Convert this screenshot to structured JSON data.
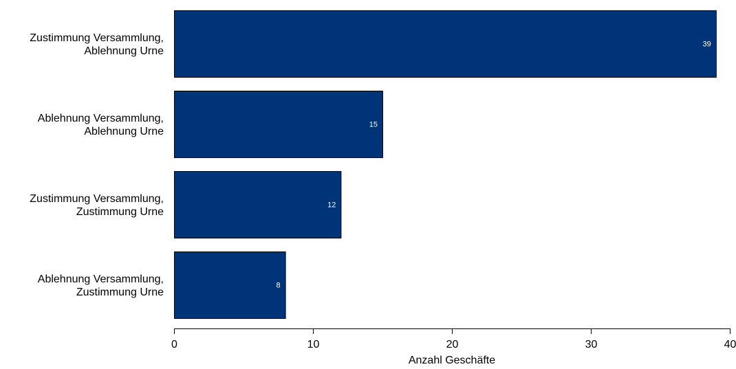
{
  "chart_data": {
    "type": "bar",
    "orientation": "horizontal",
    "categories": [
      [
        "Zustimmung Versammlung,",
        "Ablehnung Urne"
      ],
      [
        "Ablehnung Versammlung,",
        "Ablehnung Urne"
      ],
      [
        "Zustimmung Versammlung,",
        "Zustimmung Urne"
      ],
      [
        "Ablehnung Versammlung,",
        "Zustimmung Urne"
      ]
    ],
    "values": [
      39,
      15,
      12,
      8
    ],
    "data_labels": [
      "39",
      "15",
      "12",
      "8"
    ],
    "xlabel": "Anzahl Geschäfte",
    "ylabel": "",
    "xlim": [
      0,
      40
    ],
    "xticks": [
      0,
      10,
      20,
      30,
      40
    ],
    "xtick_labels": [
      "0",
      "10",
      "20",
      "30",
      "40"
    ],
    "grid": false,
    "legend": "none",
    "bar_color": "#003478",
    "bar_edge_color": "#000000"
  }
}
